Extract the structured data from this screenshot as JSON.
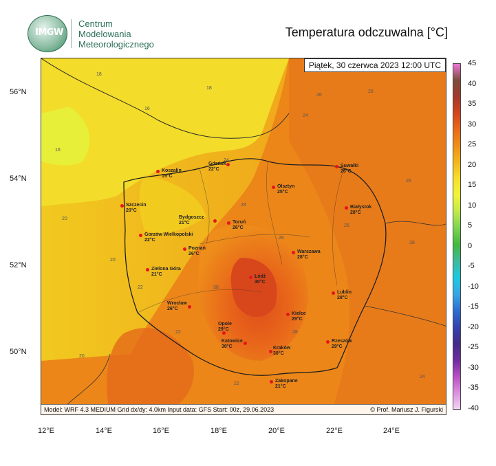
{
  "header": {
    "logo_text": "IMGW",
    "org_line1": "Centrum",
    "org_line2": "Modelowania",
    "org_line3": "Meteorologicznego",
    "title": "Temperatura odczuwalna [°C]"
  },
  "map": {
    "date_label": "Piątek, 30 czerwca 2023 12:00 UTC",
    "footer_left": "Model: WRF 4.3 MEDIUM   Grid dx/dy: 4.0km   Input data: GFS   Start: 00z, 29.06.2023",
    "footer_right": "© Prof. Mariusz J. Figurski",
    "lat_labels": [
      "56°N",
      "54°N",
      "52°N",
      "50°N"
    ],
    "lon_labels": [
      "12°E",
      "14°E",
      "16°E",
      "18°E",
      "20°E",
      "22°E",
      "24°E"
    ]
  },
  "cities": [
    {
      "name": "Gdańsk",
      "temp": "22°C"
    },
    {
      "name": "Koszalin",
      "temp": "19°C"
    },
    {
      "name": "Suwałki",
      "temp": "26°C"
    },
    {
      "name": "Olsztyn",
      "temp": "25°C"
    },
    {
      "name": "Szczecin",
      "temp": "20°C"
    },
    {
      "name": "Białystok",
      "temp": "28°C"
    },
    {
      "name": "Bydgoszcz",
      "temp": "21°C"
    },
    {
      "name": "Toruń",
      "temp": "26°C"
    },
    {
      "name": "Gorzów Wielkopolski",
      "temp": "22°C"
    },
    {
      "name": "Poznań",
      "temp": "26°C"
    },
    {
      "name": "Warszawa",
      "temp": "28°C"
    },
    {
      "name": "Zielona Góra",
      "temp": "21°C"
    },
    {
      "name": "Łódź",
      "temp": "30°C"
    },
    {
      "name": "Lublin",
      "temp": "28°C"
    },
    {
      "name": "Wrocław",
      "temp": "26°C"
    },
    {
      "name": "Kielce",
      "temp": "29°C"
    },
    {
      "name": "Opole",
      "temp": "29°C"
    },
    {
      "name": "Rzeszów",
      "temp": "29°C"
    },
    {
      "name": "Katowice",
      "temp": "30°C"
    },
    {
      "name": "Kraków",
      "temp": "30°C"
    },
    {
      "name": "Zakopane",
      "temp": "21°C"
    }
  ],
  "isolines": [
    "18",
    "16",
    "16",
    "18",
    "20",
    "20",
    "22",
    "24",
    "26",
    "26",
    "26",
    "28",
    "26",
    "24",
    "22",
    "20",
    "28",
    "26",
    "28",
    "30",
    "22",
    "24"
  ],
  "colorbar": {
    "labels": [
      "45",
      "40",
      "35",
      "30",
      "25",
      "20",
      "15",
      "10",
      "5",
      "0",
      "-5",
      "-10",
      "-15",
      "-20",
      "-25",
      "-30",
      "-35",
      "-40"
    ],
    "colors": [
      "#ec75d8",
      "#7c4d3a",
      "#a33a2d",
      "#d4441e",
      "#ea6a17",
      "#f08f17",
      "#f4b81c",
      "#f7e02a",
      "#f1f438",
      "#bfe94b",
      "#7cd450",
      "#43b93f",
      "#3fb99c",
      "#1bc9df",
      "#37a6e6",
      "#2d6fd1",
      "#3443b0",
      "#432c88",
      "#6d2ba0",
      "#b64fc1",
      "#dc8fe0",
      "#f1d2f3"
    ]
  }
}
